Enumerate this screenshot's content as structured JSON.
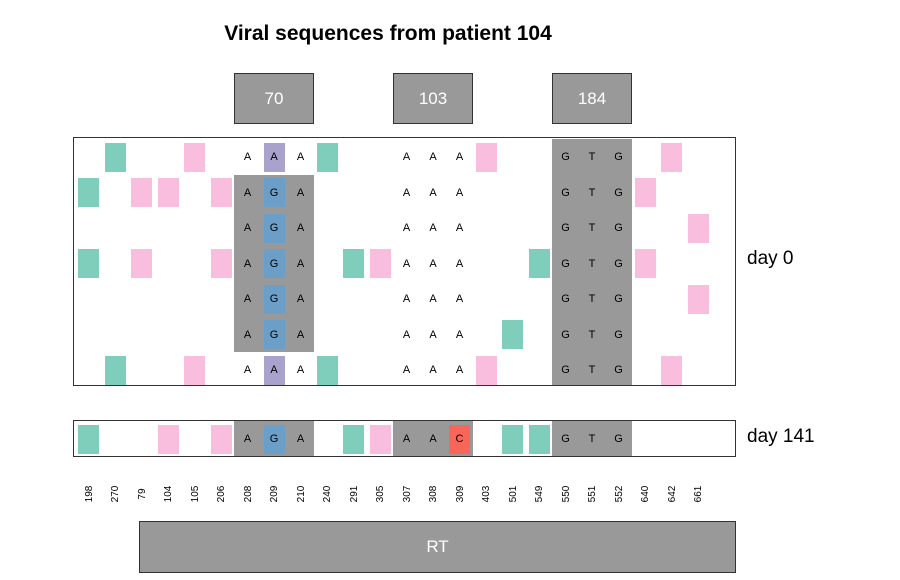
{
  "title": "Viral sequences from patient 104",
  "colors": {
    "shade": "#999999",
    "teal": "#7FCDBB",
    "pink": "#F9BEDD",
    "blue": "#6C9FC7",
    "purple": "#A9A2CC",
    "red": "#F8665A"
  },
  "codon_boxes": [
    {
      "label": "70",
      "positions": [
        "208",
        "209",
        "210"
      ]
    },
    {
      "label": "103",
      "positions": [
        "307",
        "308",
        "309"
      ]
    },
    {
      "label": "184",
      "positions": [
        "550",
        "551",
        "552"
      ]
    }
  ],
  "positions": [
    "198",
    "270",
    "79",
    "104",
    "105",
    "206",
    "208",
    "209",
    "210",
    "240",
    "291",
    "305",
    "307",
    "308",
    "309",
    "403",
    "501",
    "549",
    "550",
    "551",
    "552",
    "640",
    "642",
    "661"
  ],
  "gene_label": "RT",
  "day_labels": {
    "day0": "day 0",
    "day141": "day 141"
  },
  "panels": [
    {
      "name": "day0",
      "shaded": [
        {
          "from": 6,
          "to": 8,
          "rows": [
            1,
            5
          ]
        },
        {
          "from": 18,
          "to": 20,
          "rows": [
            0,
            6
          ]
        }
      ],
      "rows": [
        {
          "marks": [
            [
              1,
              "teal"
            ],
            [
              4,
              "pink"
            ],
            [
              9,
              "teal"
            ],
            [
              15,
              "pink"
            ],
            [
              22,
              "pink"
            ]
          ],
          "bases": [
            [
              6,
              "A"
            ],
            [
              7,
              "A",
              "purple"
            ],
            [
              8,
              "A"
            ],
            [
              12,
              "A"
            ],
            [
              13,
              "A"
            ],
            [
              14,
              "A"
            ],
            [
              18,
              "G"
            ],
            [
              19,
              "T"
            ],
            [
              20,
              "G"
            ]
          ]
        },
        {
          "marks": [
            [
              0,
              "teal"
            ],
            [
              2,
              "pink"
            ],
            [
              3,
              "pink"
            ],
            [
              5,
              "pink"
            ],
            [
              21,
              "pink"
            ]
          ],
          "bases": [
            [
              6,
              "A"
            ],
            [
              7,
              "G",
              "blue"
            ],
            [
              8,
              "A"
            ],
            [
              12,
              "A"
            ],
            [
              13,
              "A"
            ],
            [
              14,
              "A"
            ],
            [
              18,
              "G"
            ],
            [
              19,
              "T"
            ],
            [
              20,
              "G"
            ]
          ]
        },
        {
          "marks": [
            [
              23,
              "pink"
            ]
          ],
          "bases": [
            [
              6,
              "A"
            ],
            [
              7,
              "G",
              "blue"
            ],
            [
              8,
              "A"
            ],
            [
              12,
              "A"
            ],
            [
              13,
              "A"
            ],
            [
              14,
              "A"
            ],
            [
              18,
              "G"
            ],
            [
              19,
              "T"
            ],
            [
              20,
              "G"
            ]
          ]
        },
        {
          "marks": [
            [
              0,
              "teal"
            ],
            [
              2,
              "pink"
            ],
            [
              5,
              "pink"
            ],
            [
              10,
              "teal"
            ],
            [
              11,
              "pink"
            ],
            [
              17,
              "teal"
            ],
            [
              21,
              "pink"
            ]
          ],
          "bases": [
            [
              6,
              "A"
            ],
            [
              7,
              "G",
              "blue"
            ],
            [
              8,
              "A"
            ],
            [
              12,
              "A"
            ],
            [
              13,
              "A"
            ],
            [
              14,
              "A"
            ],
            [
              18,
              "G"
            ],
            [
              19,
              "T"
            ],
            [
              20,
              "G"
            ]
          ]
        },
        {
          "marks": [
            [
              23,
              "pink"
            ]
          ],
          "bases": [
            [
              6,
              "A"
            ],
            [
              7,
              "G",
              "blue"
            ],
            [
              8,
              "A"
            ],
            [
              12,
              "A"
            ],
            [
              13,
              "A"
            ],
            [
              14,
              "A"
            ],
            [
              18,
              "G"
            ],
            [
              19,
              "T"
            ],
            [
              20,
              "G"
            ]
          ]
        },
        {
          "marks": [
            [
              16,
              "teal"
            ]
          ],
          "bases": [
            [
              6,
              "A"
            ],
            [
              7,
              "G",
              "blue"
            ],
            [
              8,
              "A"
            ],
            [
              12,
              "A"
            ],
            [
              13,
              "A"
            ],
            [
              14,
              "A"
            ],
            [
              18,
              "G"
            ],
            [
              19,
              "T"
            ],
            [
              20,
              "G"
            ]
          ]
        },
        {
          "marks": [
            [
              1,
              "teal"
            ],
            [
              4,
              "pink"
            ],
            [
              9,
              "teal"
            ],
            [
              15,
              "pink"
            ],
            [
              22,
              "pink"
            ]
          ],
          "bases": [
            [
              6,
              "A"
            ],
            [
              7,
              "A",
              "purple"
            ],
            [
              8,
              "A"
            ],
            [
              12,
              "A"
            ],
            [
              13,
              "A"
            ],
            [
              14,
              "A"
            ],
            [
              18,
              "G"
            ],
            [
              19,
              "T"
            ],
            [
              20,
              "G"
            ]
          ]
        }
      ]
    },
    {
      "name": "day141",
      "shaded": [
        {
          "from": 6,
          "to": 8,
          "rows": [
            0,
            0
          ]
        },
        {
          "from": 12,
          "to": 14,
          "rows": [
            0,
            0
          ]
        },
        {
          "from": 18,
          "to": 20,
          "rows": [
            0,
            0
          ]
        }
      ],
      "rows": [
        {
          "marks": [
            [
              0,
              "teal"
            ],
            [
              3,
              "pink"
            ],
            [
              5,
              "pink"
            ],
            [
              10,
              "teal"
            ],
            [
              11,
              "pink"
            ],
            [
              16,
              "teal"
            ],
            [
              17,
              "teal"
            ]
          ],
          "bases": [
            [
              6,
              "A"
            ],
            [
              7,
              "G",
              "blue"
            ],
            [
              8,
              "A"
            ],
            [
              12,
              "A"
            ],
            [
              13,
              "A"
            ],
            [
              14,
              "C",
              "red"
            ],
            [
              18,
              "G"
            ],
            [
              19,
              "T"
            ],
            [
              20,
              "G"
            ]
          ]
        }
      ]
    }
  ]
}
